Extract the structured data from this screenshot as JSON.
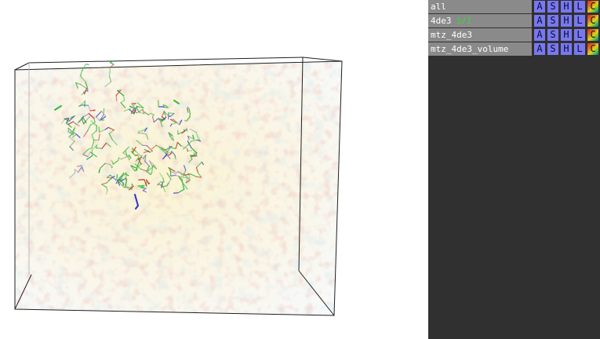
{
  "objects": [
    {
      "name": "all",
      "state": ""
    },
    {
      "name": "4de3",
      "state": "1/1"
    },
    {
      "name": "mtz_4de3",
      "state": ""
    },
    {
      "name": "mtz_4de3_volume",
      "state": ""
    }
  ],
  "buttons": {
    "action": "A",
    "show": "S",
    "hide": "H",
    "label": "L",
    "color": "C"
  },
  "colors": {
    "panel_bg": "#303030",
    "row_bg": "#8a8a8a",
    "button_bg": "#7878f0",
    "state_text": "#33dd33",
    "viewport_bg": "#ffffff"
  }
}
